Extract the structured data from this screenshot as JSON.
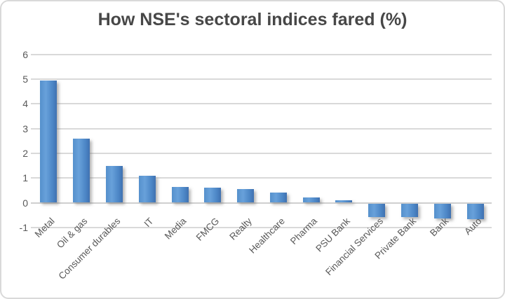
{
  "chart_data": {
    "type": "bar",
    "title": "How NSE's sectoral indices fared (%)",
    "categories": [
      "Metal",
      "Oil & gas",
      "Consumer durables",
      "IT",
      "Media",
      "FMCG",
      "Realty",
      "Healthcare",
      "Pharma",
      "PSU Bank",
      "Financial Services",
      "Private Bank",
      "Bank",
      "Auto"
    ],
    "values": [
      4.95,
      2.6,
      1.5,
      1.1,
      0.65,
      0.6,
      0.55,
      0.4,
      0.2,
      0.1,
      -0.55,
      -0.55,
      -0.6,
      -0.65
    ],
    "xlabel": "",
    "ylabel": "",
    "ylim": [
      -1,
      6
    ],
    "yticks": [
      6,
      5,
      4,
      3,
      2,
      1,
      0,
      -1
    ],
    "grid": "horizontal",
    "legend_position": "none"
  },
  "colors": {
    "bar_main": "#5b9bd5",
    "bar_light": "#68a1da",
    "bar_mid": "#5590cc",
    "bar_dark": "#4071b0",
    "bar_darker": "#4c86c6",
    "gridline": "#d9d9d9",
    "zero_line": "#cfcfcf",
    "title_text": "#474747",
    "axis_text": "#595959",
    "frame_border": "#d9d9d9",
    "background": "#ffffff"
  }
}
